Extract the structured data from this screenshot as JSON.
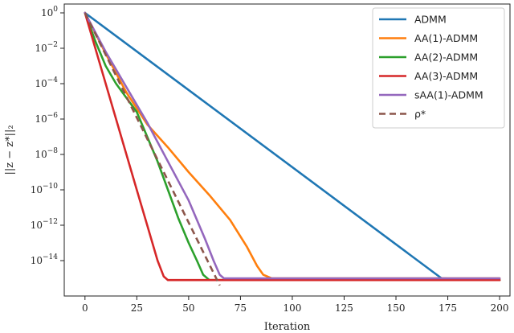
{
  "chart_data": {
    "type": "line",
    "xlabel": "Iteration",
    "ylabel": "||z − z*||₂",
    "xlim": [
      -10,
      205
    ],
    "ylim_log10": [
      -16,
      0.5
    ],
    "y_scale": "log",
    "x_ticks": [
      0,
      25,
      50,
      75,
      100,
      125,
      150,
      175,
      200
    ],
    "x_tick_labels": [
      "0",
      "25",
      "50",
      "75",
      "100",
      "125",
      "150",
      "175",
      "200"
    ],
    "y_ticks_log10": [
      0,
      -2,
      -4,
      -6,
      -8,
      -10,
      -12,
      -14
    ],
    "y_tick_labels": [
      {
        "base": "10",
        "exp": "0"
      },
      {
        "base": "10",
        "exp": "−2"
      },
      {
        "base": "10",
        "exp": "−4"
      },
      {
        "base": "10",
        "exp": "−6"
      },
      {
        "base": "10",
        "exp": "−8"
      },
      {
        "base": "10",
        "exp": "−10"
      },
      {
        "base": "10",
        "exp": "−12"
      },
      {
        "base": "10",
        "exp": "−14"
      }
    ],
    "grid": false,
    "legend_position": "top-right",
    "series": [
      {
        "name": "ADMM",
        "color": "#1f77b4",
        "dash": false,
        "points_log10": [
          [
            0,
            0.0
          ],
          [
            172,
            -15.0
          ],
          [
            200,
            -15.1
          ]
        ]
      },
      {
        "name": "AA(1)-ADMM",
        "color": "#ff7f0e",
        "dash": false,
        "points_log10": [
          [
            0,
            0.0
          ],
          [
            10,
            -2.3
          ],
          [
            20,
            -4.5
          ],
          [
            30,
            -6.3
          ],
          [
            40,
            -7.6
          ],
          [
            50,
            -9.0
          ],
          [
            60,
            -10.3
          ],
          [
            70,
            -11.7
          ],
          [
            78,
            -13.2
          ],
          [
            83,
            -14.3
          ],
          [
            86,
            -14.8
          ],
          [
            90,
            -15.0
          ],
          [
            100,
            -15.0
          ],
          [
            200,
            -15.0
          ]
        ]
      },
      {
        "name": "AA(2)-ADMM",
        "color": "#2ca02c",
        "dash": false,
        "points_log10": [
          [
            0,
            0.0
          ],
          [
            5,
            -1.6
          ],
          [
            10,
            -3.0
          ],
          [
            15,
            -4.0
          ],
          [
            20,
            -4.8
          ],
          [
            25,
            -5.6
          ],
          [
            30,
            -7.0
          ],
          [
            35,
            -8.4
          ],
          [
            40,
            -10.0
          ],
          [
            45,
            -11.6
          ],
          [
            50,
            -13.0
          ],
          [
            54,
            -14.0
          ],
          [
            57,
            -14.8
          ],
          [
            60,
            -15.1
          ],
          [
            100,
            -15.1
          ],
          [
            200,
            -15.1
          ]
        ]
      },
      {
        "name": "AA(3)-ADMM",
        "color": "#d62728",
        "dash": false,
        "points_log10": [
          [
            0,
            0.0
          ],
          [
            5,
            -2.0
          ],
          [
            10,
            -4.0
          ],
          [
            15,
            -6.0
          ],
          [
            20,
            -8.0
          ],
          [
            25,
            -10.0
          ],
          [
            30,
            -12.0
          ],
          [
            35,
            -14.0
          ],
          [
            38,
            -14.9
          ],
          [
            40,
            -15.1
          ],
          [
            100,
            -15.1
          ],
          [
            200,
            -15.1
          ]
        ]
      },
      {
        "name": "sAA(1)-ADMM",
        "color": "#9467bd",
        "dash": false,
        "points_log10": [
          [
            0,
            0.0
          ],
          [
            10,
            -2.2
          ],
          [
            20,
            -4.2
          ],
          [
            30,
            -6.2
          ],
          [
            40,
            -8.4
          ],
          [
            50,
            -10.6
          ],
          [
            58,
            -12.8
          ],
          [
            62,
            -14.0
          ],
          [
            65,
            -14.8
          ],
          [
            67,
            -15.0
          ],
          [
            100,
            -15.0
          ],
          [
            200,
            -15.0
          ]
        ]
      },
      {
        "name": "ρ*",
        "color": "#8c564b",
        "dash": true,
        "points_log10": [
          [
            0,
            0.0
          ],
          [
            65,
            -15.4
          ]
        ]
      }
    ]
  }
}
